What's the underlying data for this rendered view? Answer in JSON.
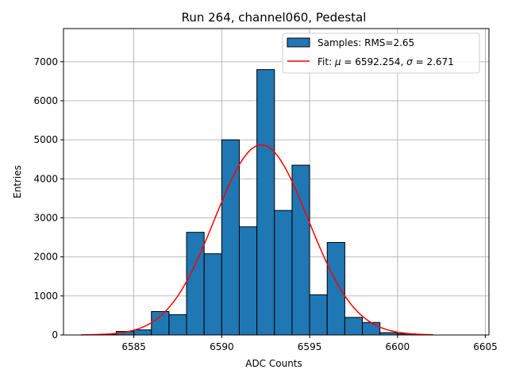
{
  "chart_data": {
    "type": "bar",
    "title": "Run 264, channel060, Pedestal",
    "xlabel": "ADC Counts",
    "ylabel": "Entries",
    "xlim": [
      6581,
      6605.2
    ],
    "ylim": [
      0,
      7850
    ],
    "xticks": [
      6585,
      6590,
      6595,
      6600,
      6605
    ],
    "yticks": [
      0,
      1000,
      2000,
      3000,
      4000,
      5000,
      6000,
      7000
    ],
    "grid": true,
    "legend_position": "top-right",
    "histogram": {
      "name": "Samples: RMS=2.65",
      "color": "#1f77b4",
      "edge_color": "#000000",
      "bin_width": 1,
      "bin_left_edges": [
        6583,
        6584,
        6585,
        6586,
        6587,
        6588,
        6589,
        6590,
        6591,
        6592,
        6593,
        6594,
        6595,
        6596,
        6597,
        6598,
        6599,
        6600,
        6601
      ],
      "counts": [
        15,
        90,
        130,
        600,
        520,
        2630,
        2080,
        5000,
        2770,
        6800,
        3190,
        4350,
        1030,
        2370,
        450,
        320,
        60,
        30,
        10
      ]
    },
    "fit": {
      "name_prefix": "Fit: ",
      "name_mu": "μ",
      "name_mu_value": " = 6592.254, ",
      "name_sigma": "σ",
      "name_sigma_value": " = 2.671",
      "type": "gaussian",
      "mu": 6592.254,
      "sigma": 2.671,
      "amplitude": 4870,
      "x_range": [
        6582,
        6602
      ],
      "color": "#ff0000"
    }
  }
}
